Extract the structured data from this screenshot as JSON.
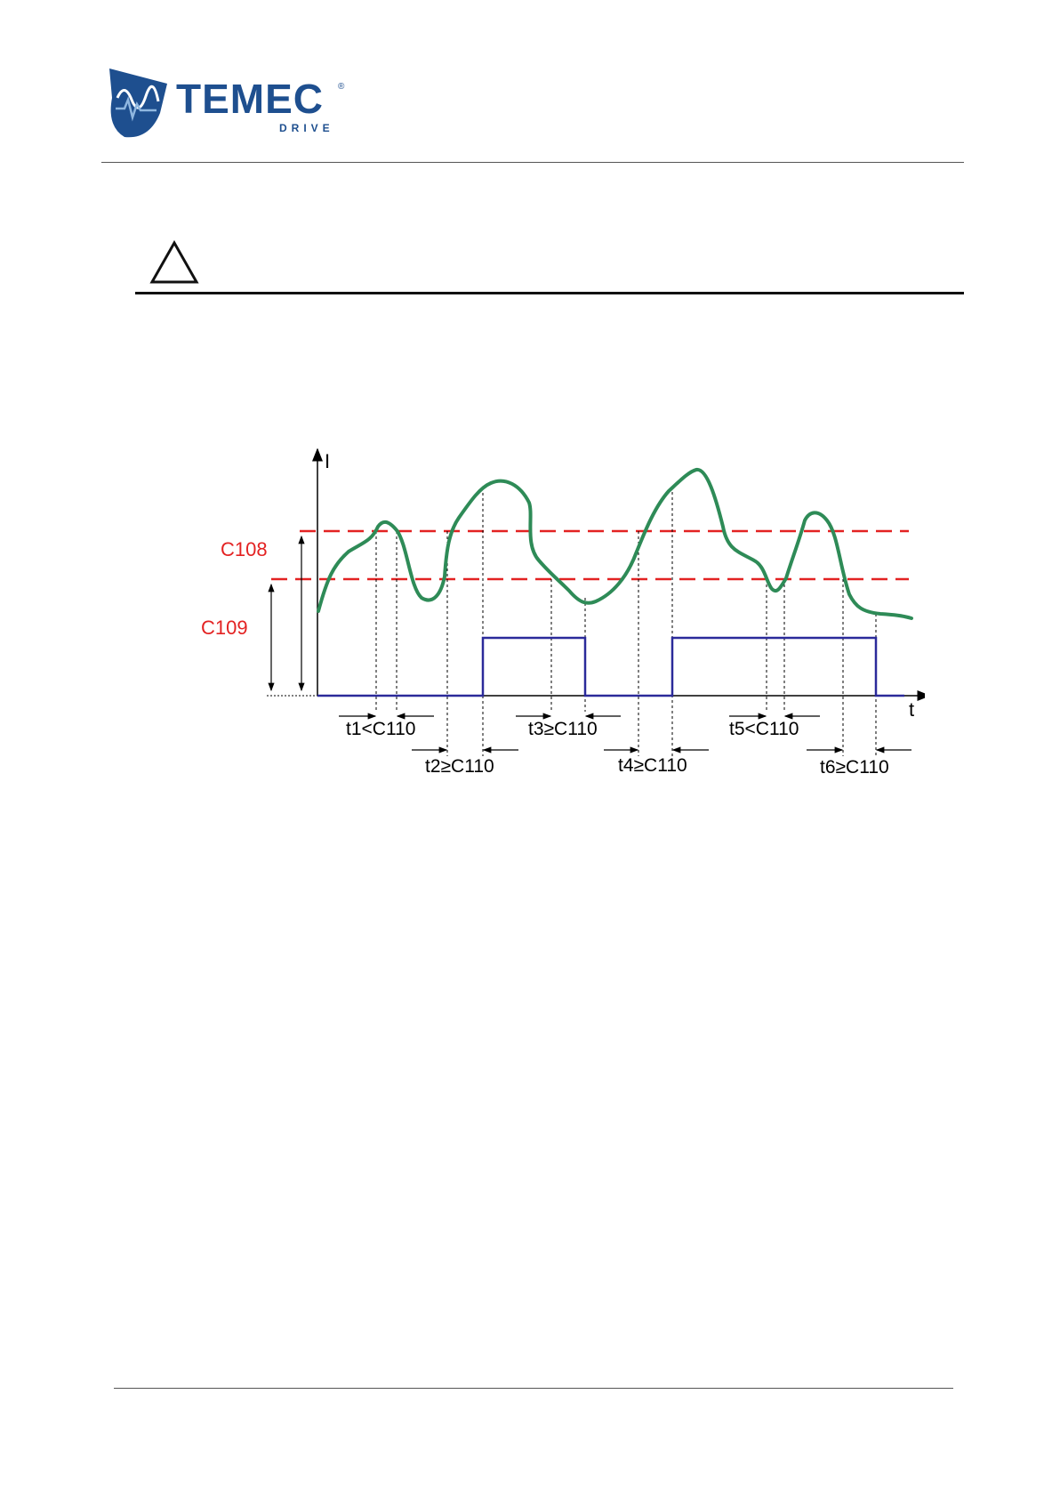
{
  "header": {
    "logo": {
      "brand": "TEMEC",
      "sub": "DRIVE",
      "registered": "®"
    }
  },
  "warning": {
    "icon": "warning-triangle-icon"
  },
  "diagram": {
    "axis_y_label": "I",
    "axis_x_label": "t",
    "threshold_upper_label": "C108",
    "threshold_lower_label": "C109",
    "intervals": {
      "t1": "t1<C110",
      "t2": "t2≥C110",
      "t3": "t3≥C110",
      "t4": "t4≥C110",
      "t5": "t5<C110",
      "t6": "t6≥C110"
    },
    "colors": {
      "current": "#2e8b57",
      "output": "#2b2a9a",
      "threshold": "#e32222",
      "label_red": "#e32222"
    }
  }
}
